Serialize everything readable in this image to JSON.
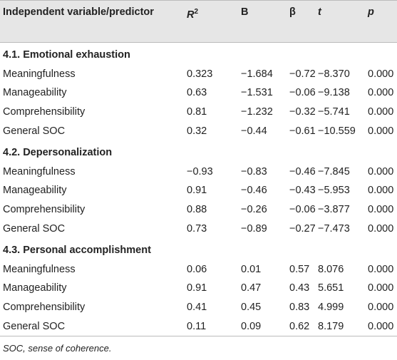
{
  "table": {
    "header": [
      "Independent variable/predictor",
      {
        "base": "R",
        "sup": "2"
      },
      "B",
      "β",
      "t",
      "p"
    ],
    "sections": [
      {
        "title": "4.1. Emotional exhaustion",
        "rows": [
          [
            "Meaningfulness",
            "0.323",
            "−1.684",
            "−0.72",
            "−8.370",
            "0.000"
          ],
          [
            "Manageability",
            "0.63",
            "−1.531",
            "−0.06",
            "−9.138",
            "0.000"
          ],
          [
            "Comprehensibility",
            "0.81",
            "−1.232",
            "−0.32",
            "−5.741",
            "0.000"
          ],
          [
            "General SOC",
            "0.32",
            "−0.44",
            "−0.61",
            "−10.559",
            "0.000"
          ]
        ]
      },
      {
        "title": "4.2. Depersonalization",
        "rows": [
          [
            "Meaningfulness",
            "−0.93",
            "−0.83",
            "−0.46",
            "−7.845",
            "0.000"
          ],
          [
            "Manageability",
            "0.91",
            "−0.46",
            "−0.43",
            "−5.953",
            "0.000"
          ],
          [
            "Comprehensibility",
            "0.88",
            "−0.26",
            "−0.06",
            "−3.877",
            "0.000"
          ],
          [
            "General SOC",
            "0.73",
            "−0.89",
            "−0.27",
            "−7.473",
            "0.000"
          ]
        ]
      },
      {
        "title": "4.3. Personal accomplishment",
        "rows": [
          [
            "Meaningfulness",
            "0.06",
            "0.01",
            "0.57",
            "8.076",
            "0.000"
          ],
          [
            "Manageability",
            "0.91",
            "0.47",
            "0.43",
            "5.651",
            "0.000"
          ],
          [
            "Comprehensibility",
            "0.41",
            "0.45",
            "0.83",
            "4.999",
            "0.000"
          ],
          [
            "General SOC",
            "0.11",
            "0.09",
            "0.62",
            "8.179",
            "0.000"
          ]
        ]
      }
    ],
    "footnote": "SOC, sense of coherence."
  }
}
